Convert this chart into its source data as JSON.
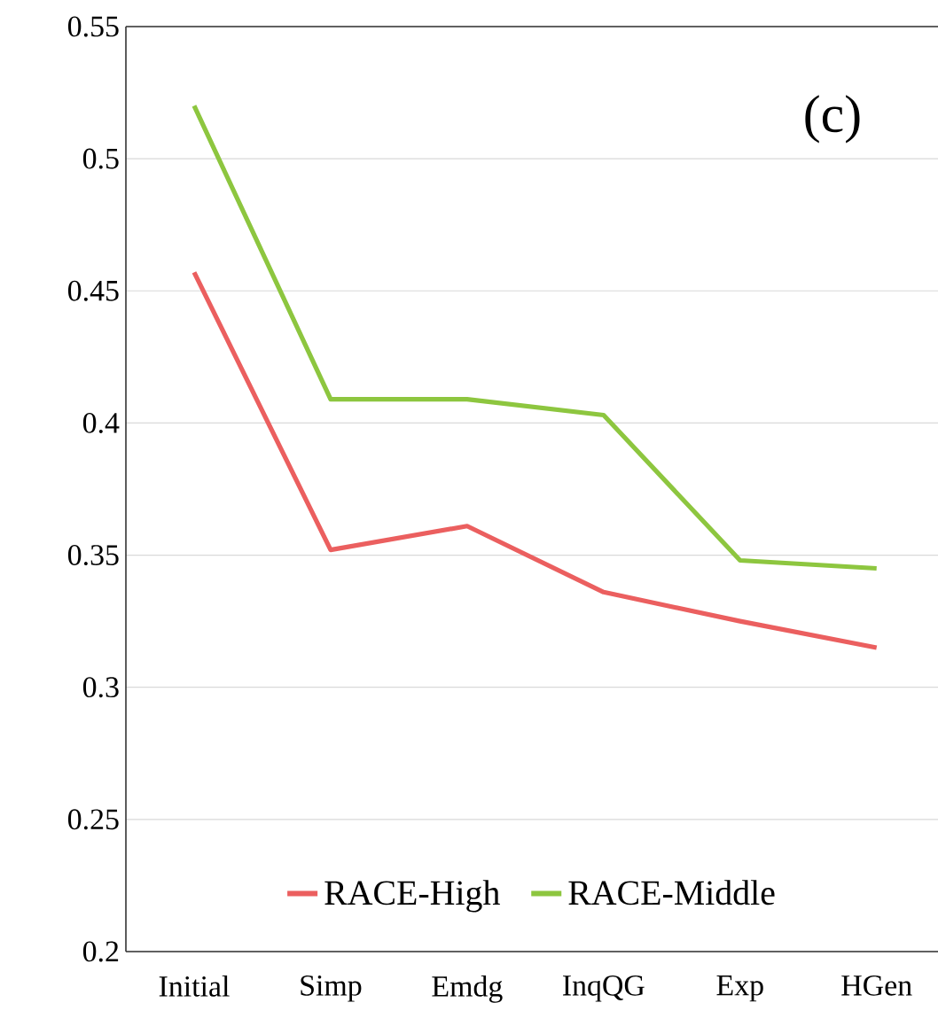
{
  "chart_data": {
    "type": "line",
    "categories": [
      "Initial",
      "Simp",
      "Emdg",
      "InqQG",
      "Exp",
      "HGen"
    ],
    "series": [
      {
        "name": "RACE-High",
        "color": "#eb5f5f",
        "values": [
          0.457,
          0.352,
          0.361,
          0.336,
          0.325,
          0.315
        ]
      },
      {
        "name": "RACE-Middle",
        "color": "#8dc63f",
        "values": [
          0.52,
          0.409,
          0.409,
          0.403,
          0.348,
          0.345
        ]
      }
    ],
    "ylim": [
      0.2,
      0.55
    ],
    "yticks": [
      0.2,
      0.25,
      0.3,
      0.35,
      0.4,
      0.45,
      0.5,
      0.55
    ],
    "grid": "y",
    "legend": "bottom",
    "marker": "none",
    "line_style": "solid",
    "annotations": [
      "(c)"
    ]
  }
}
